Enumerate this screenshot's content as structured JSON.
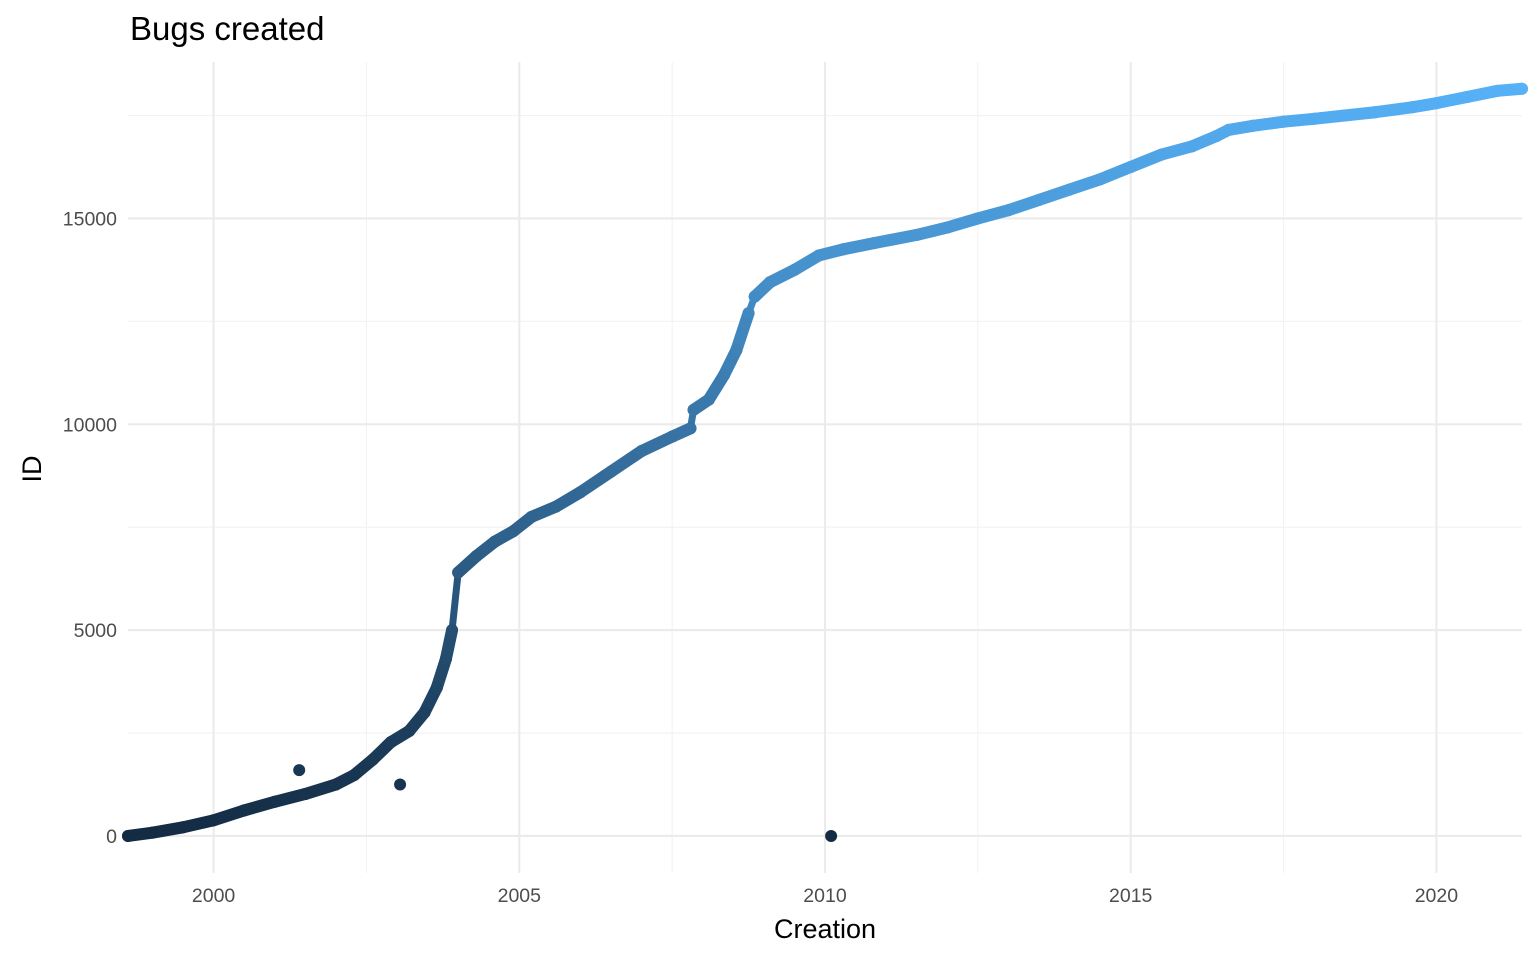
{
  "chart_data": {
    "type": "scatter",
    "title": "Bugs created",
    "xlabel": "Creation",
    "ylabel": "ID",
    "xlim": [
      1998.6,
      2021.4
    ],
    "ylim": [
      -900,
      18800
    ],
    "x_major_ticks": [
      2000,
      2005,
      2010,
      2015,
      2020
    ],
    "x_minor_ticks": [
      1997.5,
      2002.5,
      2007.5,
      2012.5,
      2017.5
    ],
    "y_major_ticks": [
      0,
      5000,
      10000,
      15000
    ],
    "y_minor_ticks": [
      2500,
      7500,
      12500,
      17500
    ],
    "x_tick_labels": [
      "2000",
      "2005",
      "2010",
      "2015",
      "2020"
    ],
    "y_tick_labels": [
      "0",
      "5000",
      "10000",
      "15000"
    ],
    "grid": true,
    "legend": "none",
    "color_scale": {
      "variable": "ID",
      "low": "#132B43",
      "high": "#56B1F7",
      "domain": [
        0,
        18200
      ]
    },
    "series": [
      {
        "points": [
          [
            1998.6,
            0
          ],
          [
            1999.0,
            80
          ],
          [
            1999.5,
            210
          ],
          [
            2000.0,
            380
          ],
          [
            2000.5,
            620
          ],
          [
            2001.0,
            830
          ],
          [
            2001.5,
            1020
          ],
          [
            2002.0,
            1250
          ],
          [
            2002.3,
            1480
          ],
          [
            2002.6,
            1850
          ],
          [
            2002.9,
            2280
          ],
          [
            2003.2,
            2550
          ],
          [
            2003.45,
            3000
          ],
          [
            2003.65,
            3600
          ],
          [
            2003.8,
            4300
          ],
          [
            2003.9,
            5000
          ],
          [
            2004.0,
            6400
          ],
          [
            2004.3,
            6800
          ],
          [
            2004.6,
            7150
          ],
          [
            2004.9,
            7400
          ],
          [
            2005.2,
            7750
          ],
          [
            2005.6,
            8000
          ],
          [
            2006.0,
            8350
          ],
          [
            2006.5,
            8850
          ],
          [
            2007.0,
            9350
          ],
          [
            2007.5,
            9700
          ],
          [
            2007.8,
            9900
          ],
          [
            2007.85,
            10350
          ],
          [
            2008.1,
            10600
          ],
          [
            2008.35,
            11200
          ],
          [
            2008.55,
            11800
          ],
          [
            2008.75,
            12700
          ],
          [
            2008.85,
            13100
          ],
          [
            2009.1,
            13450
          ],
          [
            2009.5,
            13750
          ],
          [
            2009.9,
            14100
          ],
          [
            2010.3,
            14250
          ],
          [
            2010.8,
            14400
          ],
          [
            2011.5,
            14600
          ],
          [
            2012.0,
            14780
          ],
          [
            2012.5,
            15000
          ],
          [
            2013.0,
            15200
          ],
          [
            2013.5,
            15450
          ],
          [
            2014.0,
            15700
          ],
          [
            2014.5,
            15950
          ],
          [
            2015.0,
            16250
          ],
          [
            2015.5,
            16550
          ],
          [
            2016.0,
            16750
          ],
          [
            2016.4,
            17000
          ],
          [
            2016.6,
            17150
          ],
          [
            2017.0,
            17250
          ],
          [
            2017.5,
            17350
          ],
          [
            2018.0,
            17420
          ],
          [
            2018.5,
            17500
          ],
          [
            2019.0,
            17580
          ],
          [
            2019.6,
            17700
          ],
          [
            2020.0,
            17800
          ],
          [
            2020.5,
            17950
          ],
          [
            2021.0,
            18100
          ],
          [
            2021.4,
            18150
          ]
        ]
      }
    ],
    "outliers": [
      [
        2001.4,
        1600
      ],
      [
        2003.05,
        1250
      ],
      [
        2010.1,
        0
      ]
    ]
  }
}
